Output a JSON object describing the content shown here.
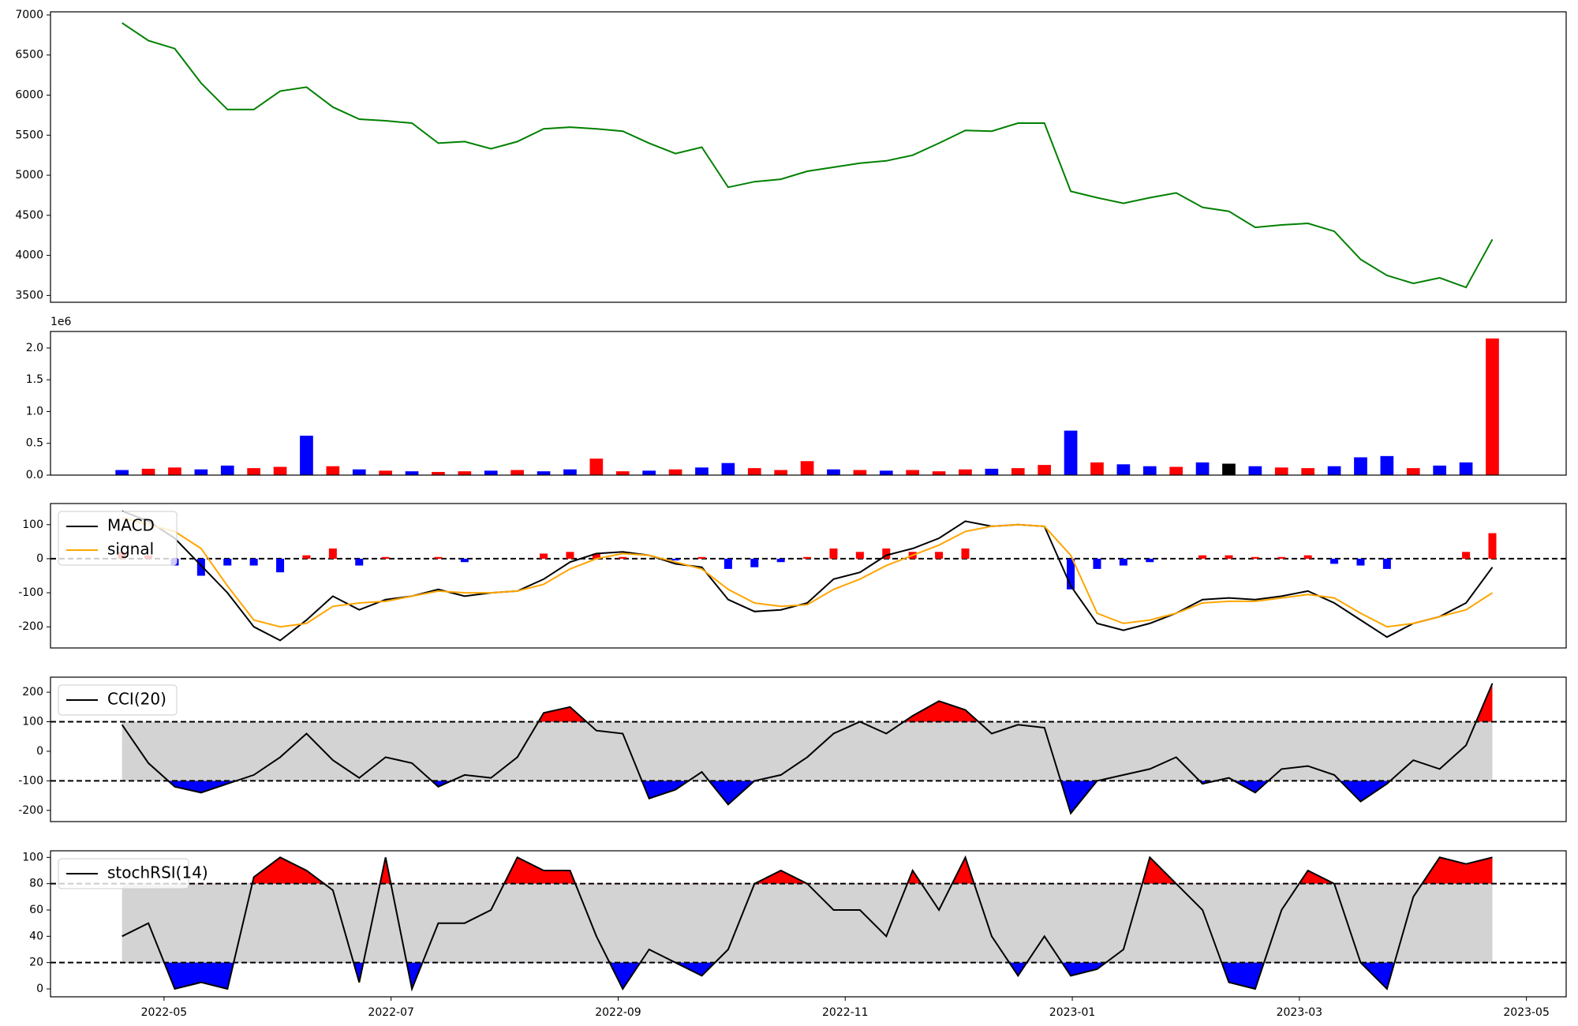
{
  "chart_data": [
    {
      "type": "line",
      "color": "#008000",
      "values": [
        6900,
        6680,
        6580,
        6150,
        5820,
        5820,
        6050,
        6100,
        5850,
        5700,
        5680,
        5650,
        5400,
        5420,
        5330,
        5420,
        5580,
        5600,
        5580,
        5550,
        5400,
        5270,
        5350,
        4850,
        4920,
        4950,
        5050,
        5100,
        5150,
        5180,
        5250,
        5400,
        5560,
        5550,
        5650,
        5650,
        4800,
        4720,
        4650,
        4720,
        4780,
        4600,
        4550,
        4350,
        4380,
        4400,
        4300,
        3950,
        3750,
        3650,
        3720,
        3600,
        4200
      ],
      "ylim": [
        3415,
        7039
      ],
      "yticks": [
        3500,
        4000,
        4500,
        5000,
        5500,
        6000,
        6500,
        7000
      ]
    },
    {
      "type": "bar",
      "offset_label": "1e6",
      "values": [
        80000,
        100000,
        120000,
        90000,
        150000,
        110000,
        130000,
        620000,
        140000,
        90000,
        70000,
        60000,
        50000,
        60000,
        70000,
        80000,
        60000,
        90000,
        260000,
        60000,
        70000,
        90000,
        120000,
        190000,
        110000,
        80000,
        220000,
        90000,
        80000,
        70000,
        80000,
        60000,
        90000,
        100000,
        110000,
        160000,
        700000,
        200000,
        170000,
        140000,
        130000,
        200000,
        180000,
        140000,
        120000,
        110000,
        140000,
        280000,
        300000,
        110000,
        150000,
        200000,
        2150000
      ],
      "colors": [
        "blue",
        "red",
        "red",
        "blue",
        "blue",
        "red",
        "red",
        "blue",
        "red",
        "blue",
        "red",
        "blue",
        "red",
        "red",
        "blue",
        "red",
        "blue",
        "blue",
        "red",
        "red",
        "blue",
        "red",
        "blue",
        "blue",
        "red",
        "red",
        "red",
        "blue",
        "red",
        "blue",
        "red",
        "red",
        "red",
        "blue",
        "red",
        "red",
        "blue",
        "red",
        "blue",
        "blue",
        "red",
        "blue",
        "black",
        "blue",
        "red",
        "red",
        "blue",
        "blue",
        "blue",
        "red",
        "blue",
        "blue",
        "red"
      ],
      "ylim": [
        0,
        2260000
      ],
      "yticks": [
        {
          "value": 0,
          "label": "0.0"
        },
        {
          "value": 500000,
          "label": "0.5"
        },
        {
          "value": 1000000,
          "label": "1.0"
        },
        {
          "value": 1500000,
          "label": "1.5"
        },
        {
          "value": 2000000,
          "label": "2.0"
        }
      ]
    },
    {
      "type": "macd",
      "legend": "upper left",
      "hlines": [
        0
      ],
      "up_color": "red",
      "down_color": "blue",
      "series": [
        {
          "name": "MACD",
          "color": "black",
          "values": [
            140,
            110,
            60,
            -20,
            -100,
            -200,
            -240,
            -180,
            -110,
            -150,
            -120,
            -110,
            -90,
            -110,
            -100,
            -95,
            -60,
            -10,
            15,
            20,
            10,
            -15,
            -25,
            -120,
            -155,
            -150,
            -130,
            -60,
            -40,
            10,
            30,
            60,
            110,
            95,
            100,
            95,
            -80,
            -190,
            -210,
            -190,
            -160,
            -120,
            -115,
            -120,
            -110,
            -95,
            -130,
            -180,
            -230,
            -190,
            -170,
            -130,
            -25
          ]
        },
        {
          "name": "signal",
          "color": "orange",
          "values": [
            120,
            100,
            80,
            30,
            -80,
            -180,
            -200,
            -190,
            -140,
            -130,
            -125,
            -110,
            -95,
            -100,
            -100,
            -95,
            -75,
            -30,
            0,
            15,
            10,
            -10,
            -30,
            -90,
            -130,
            -140,
            -135,
            -90,
            -60,
            -20,
            10,
            40,
            80,
            95,
            100,
            95,
            10,
            -160,
            -190,
            -180,
            -160,
            -130,
            -125,
            -125,
            -115,
            -105,
            -115,
            -160,
            -200,
            -190,
            -170,
            -150,
            -100
          ]
        }
      ],
      "histogram": [
        20,
        10,
        -20,
        -50,
        -20,
        -20,
        -40,
        10,
        30,
        -20,
        5,
        0,
        5,
        -10,
        0,
        0,
        15,
        20,
        15,
        5,
        0,
        -5,
        5,
        -30,
        -25,
        -10,
        5,
        30,
        20,
        30,
        20,
        20,
        30,
        0,
        0,
        0,
        -90,
        -30,
        -20,
        -10,
        0,
        10,
        10,
        5,
        5,
        10,
        -15,
        -20,
        -30,
        0,
        0,
        20,
        75
      ],
      "ylim": [
        -262,
        162
      ],
      "yticks": [
        -200,
        -100,
        0,
        100
      ]
    },
    {
      "type": "oscillator",
      "legend": "upper left",
      "bands": [
        -100,
        100
      ],
      "band_color": "lightgray",
      "upper_color": "red",
      "lower_color": "blue",
      "series": [
        {
          "name": "CCI(20)",
          "color": "black",
          "values": [
            90,
            -40,
            -120,
            -140,
            -110,
            -80,
            -20,
            60,
            -30,
            -90,
            -20,
            -40,
            -120,
            -80,
            -90,
            -20,
            130,
            150,
            70,
            60,
            -160,
            -130,
            -70,
            -180,
            -100,
            -80,
            -20,
            60,
            100,
            60,
            120,
            170,
            140,
            60,
            90,
            80,
            -210,
            -100,
            -80,
            -60,
            -20,
            -110,
            -90,
            -140,
            -60,
            -50,
            -80,
            -170,
            -110,
            -30,
            -60,
            20,
            230
          ]
        }
      ],
      "ylim": [
        -238,
        251
      ],
      "yticks": [
        -200,
        -100,
        0,
        100,
        200
      ]
    },
    {
      "type": "oscillator",
      "legend": "upper left",
      "bands": [
        20,
        80
      ],
      "band_color": "lightgray",
      "upper_color": "red",
      "lower_color": "blue",
      "series": [
        {
          "name": "stochRSI(14)",
          "color": "black",
          "values": [
            40,
            50,
            0,
            5,
            0,
            85,
            100,
            90,
            75,
            5,
            100,
            0,
            50,
            50,
            60,
            100,
            90,
            90,
            40,
            0,
            30,
            20,
            10,
            30,
            80,
            90,
            80,
            60,
            60,
            40,
            90,
            60,
            100,
            40,
            10,
            40,
            10,
            15,
            30,
            100,
            80,
            60,
            5,
            0,
            60,
            90,
            80,
            20,
            0,
            70,
            100,
            95,
            100
          ]
        }
      ],
      "ylim": [
        -6,
        105
      ],
      "yticks": [
        0,
        20,
        40,
        60,
        80,
        100
      ],
      "xlim": [
        "2022-04",
        "2023-05"
      ],
      "xticks": [
        "2022-05",
        "2022-07",
        "2022-09",
        "2022-11",
        "2023-01",
        "2023-03",
        "2023-05"
      ]
    }
  ]
}
